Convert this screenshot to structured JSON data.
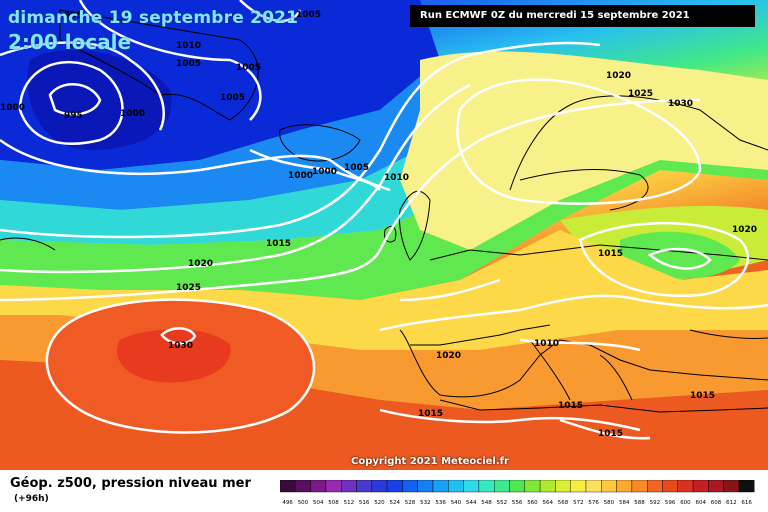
{
  "header": {
    "date": "dimanche 19 septembre 2021",
    "time": "2:00 locale",
    "run": "Run ECMWF 0Z du mercredi 15 septembre 2021"
  },
  "copyright": "Copyright 2021 Meteociel.fr",
  "legend": {
    "title": "Géop. z500, pression niveau mer",
    "subtitle": "(+96h)",
    "ticks": [
      "496",
      "500",
      "504",
      "508",
      "512",
      "516",
      "520",
      "524",
      "528",
      "532",
      "536",
      "540",
      "544",
      "548",
      "552",
      "556",
      "560",
      "564",
      "568",
      "572",
      "576",
      "580",
      "584",
      "588",
      "592",
      "596",
      "600",
      "604",
      "608",
      "612",
      "616"
    ],
    "colors": [
      "#3a0a3a",
      "#5a1060",
      "#7a1a8a",
      "#9a28b0",
      "#7030c0",
      "#4a3acc",
      "#2a3ad8",
      "#1840e6",
      "#1560f0",
      "#1680f2",
      "#1aa0f4",
      "#20c0f2",
      "#30d8e8",
      "#38e8c0",
      "#40e890",
      "#50e850",
      "#80e838",
      "#b0ea30",
      "#dcee34",
      "#f6ee40",
      "#fde060",
      "#fdc840",
      "#fcaa30",
      "#f88a28",
      "#f06820",
      "#e84a1c",
      "#dc3020",
      "#c81e22",
      "#a81820",
      "#881418",
      "#101010"
    ]
  },
  "isobars": {
    "labels": [
      {
        "t": "1005"
      },
      {
        "t": "995"
      },
      {
        "t": "1010"
      },
      {
        "t": "1005"
      },
      {
        "t": "1005"
      },
      {
        "t": "1005"
      },
      {
        "t": "1000"
      },
      {
        "t": "995"
      },
      {
        "t": "1000"
      },
      {
        "t": "1000"
      },
      {
        "t": "1000"
      },
      {
        "t": "1005"
      },
      {
        "t": "1010"
      },
      {
        "t": "1020"
      },
      {
        "t": "1025"
      },
      {
        "t": "1030"
      },
      {
        "t": "1015"
      },
      {
        "t": "1020"
      },
      {
        "t": "1025"
      },
      {
        "t": "1030"
      },
      {
        "t": "1015"
      },
      {
        "t": "1020"
      },
      {
        "t": "1010"
      },
      {
        "t": "1020"
      },
      {
        "t": "1015"
      },
      {
        "t": "1015"
      },
      {
        "t": "1015"
      },
      {
        "t": "1015"
      }
    ]
  },
  "map_colors": {
    "low": "#0a2ad0",
    "mid": "#40e890",
    "high": "#f06820",
    "isobar": "#ffffff",
    "coast": "#000000"
  }
}
